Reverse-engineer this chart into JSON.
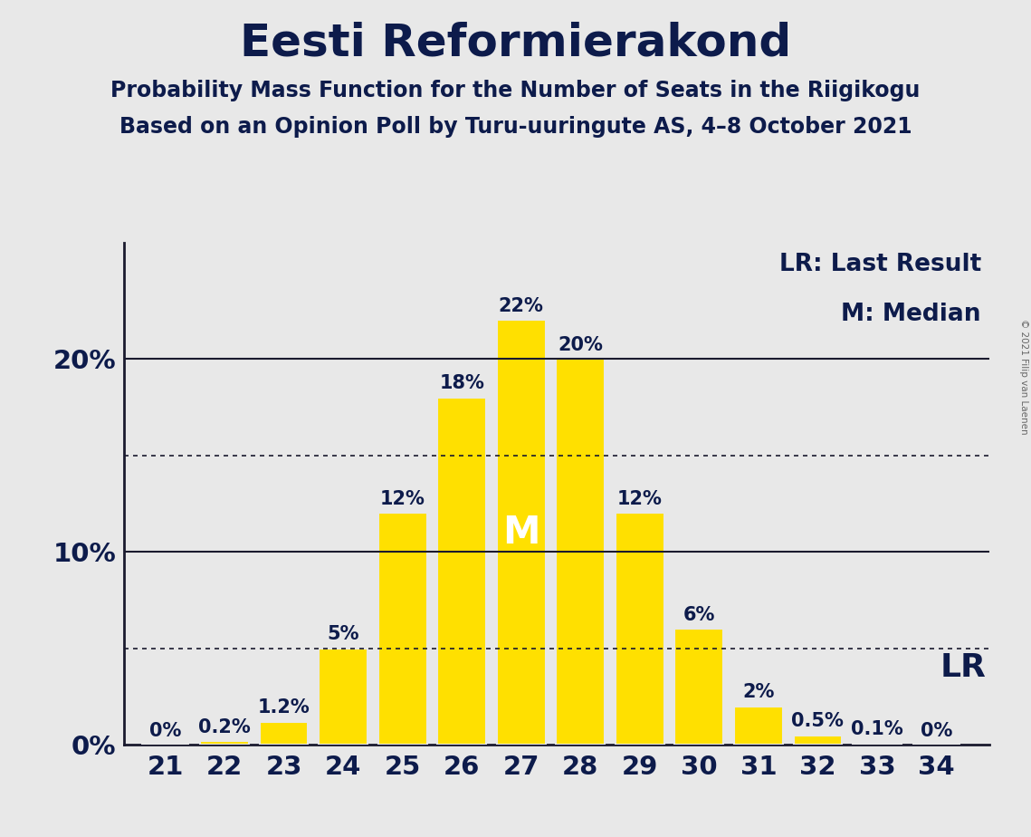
{
  "title": "Eesti Reformierakond",
  "subtitle1": "Probability Mass Function for the Number of Seats in the Riigikogu",
  "subtitle2": "Based on an Opinion Poll by Turu-uuringute AS, 4–8 October 2021",
  "copyright": "© 2021 Filip van Laenen",
  "seats": [
    21,
    22,
    23,
    24,
    25,
    26,
    27,
    28,
    29,
    30,
    31,
    32,
    33,
    34
  ],
  "probabilities": [
    0.0,
    0.2,
    1.2,
    5.0,
    12.0,
    18.0,
    22.0,
    20.0,
    12.0,
    6.0,
    2.0,
    0.5,
    0.1,
    0.0
  ],
  "labels": [
    "0%",
    "0.2%",
    "1.2%",
    "5%",
    "12%",
    "18%",
    "22%",
    "20%",
    "12%",
    "6%",
    "2%",
    "0.5%",
    "0.1%",
    "0%"
  ],
  "bar_color": "#FFE000",
  "background_color": "#E8E8E8",
  "text_color": "#0d1b4b",
  "median_seat": 27,
  "last_result_seat": 34,
  "median_label": "M",
  "lr_label": "LR",
  "legend_lr": "LR: Last Result",
  "legend_m": "M: Median",
  "dotted_line_values": [
    5.0,
    15.0
  ],
  "solid_line_values": [
    10.0,
    20.0
  ],
  "ylim_max": 26.0,
  "title_fontsize": 36,
  "subtitle_fontsize": 17,
  "bar_label_fontsize": 15,
  "axis_tick_fontsize": 21,
  "legend_fontsize": 19,
  "median_fontsize": 30,
  "lr_inline_fontsize": 26
}
